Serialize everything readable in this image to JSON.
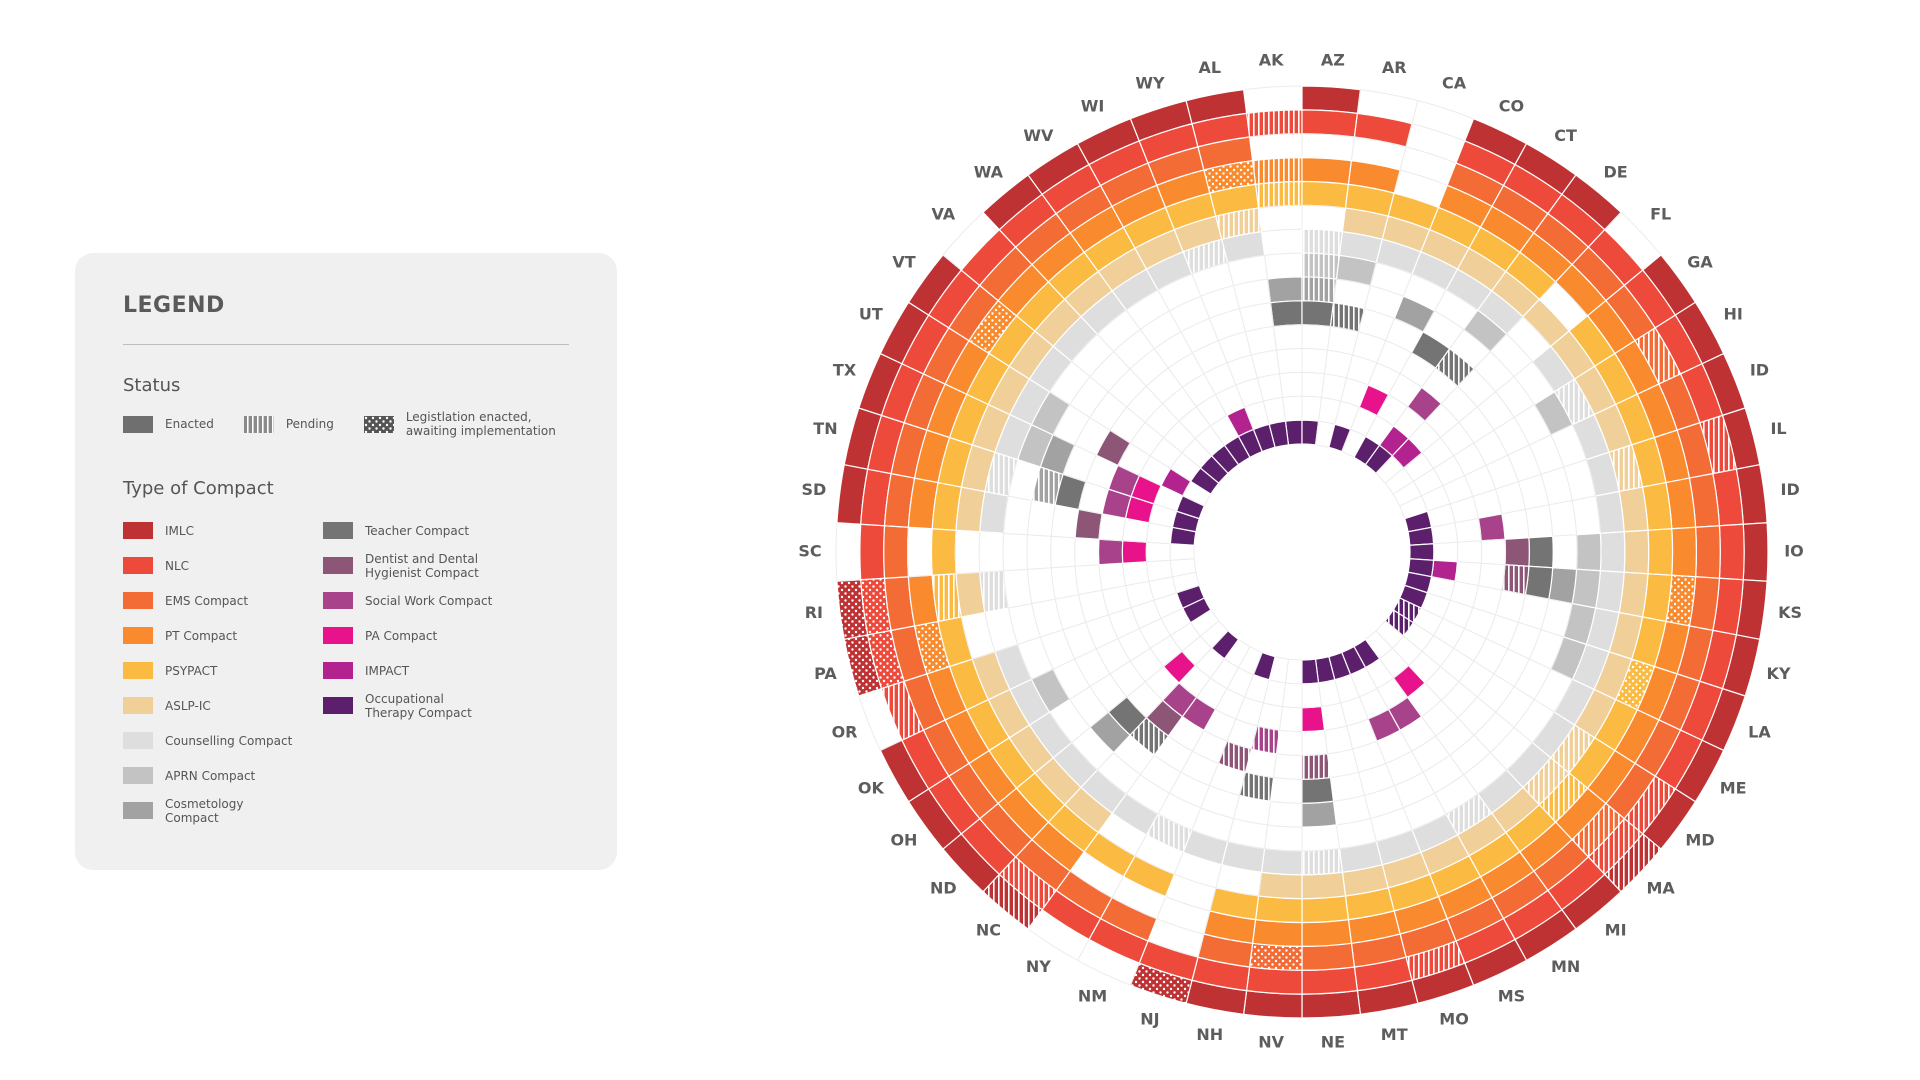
{
  "chart_data": {
    "type": "radial-heatmap",
    "legend_title": "LEGEND",
    "status_title": "Status",
    "statuses": [
      "Enacted",
      "Pending",
      "Legistlation enacted, awaiting implementation"
    ],
    "compact_title": "Type of Compact",
    "categories": [
      "AK",
      "AZ",
      "AR",
      "CA",
      "CO",
      "CT",
      "DE",
      "FL",
      "GA",
      "HI",
      "ID",
      "IL",
      "ID",
      "IO",
      "KS",
      "KY",
      "LA",
      "ME",
      "MD",
      "MA",
      "MI",
      "MN",
      "MS",
      "MO",
      "MT",
      "NE",
      "NV",
      "NH",
      "NJ",
      "NM",
      "NY",
      "NC",
      "ND",
      "OH",
      "OK",
      "OR",
      "PA",
      "RI",
      "SC",
      "SD",
      "TN",
      "TX",
      "UT",
      "VT",
      "VA",
      "WA",
      "WV",
      "WI",
      "WY",
      "AL"
    ],
    "series": [
      {
        "name": "IMLC",
        "color": "#be3234",
        "values": [
          null,
          0,
          null,
          null,
          0,
          0,
          0,
          null,
          0,
          0,
          0,
          0,
          0,
          0,
          0,
          0,
          0,
          0,
          0,
          1,
          0,
          0,
          0,
          0,
          0,
          0,
          0,
          0,
          2,
          null,
          null,
          1,
          0,
          0,
          0,
          null,
          2,
          2,
          null,
          0,
          0,
          0,
          0,
          0,
          null,
          0,
          0,
          0,
          0,
          0
        ]
      },
      {
        "name": "NLC",
        "color": "#ee4a3b",
        "values": [
          1,
          0,
          0,
          null,
          0,
          0,
          0,
          0,
          0,
          0,
          0,
          1,
          0,
          0,
          0,
          0,
          0,
          0,
          1,
          1,
          0,
          0,
          0,
          1,
          0,
          0,
          0,
          0,
          0,
          0,
          0,
          1,
          0,
          0,
          0,
          1,
          2,
          2,
          0,
          0,
          0,
          0,
          0,
          0,
          0,
          0,
          0,
          0,
          0,
          0
        ]
      },
      {
        "name": "EMS Compact",
        "color": "#f36b35",
        "values": [
          null,
          null,
          null,
          null,
          0,
          0,
          0,
          0,
          0,
          1,
          0,
          0,
          0,
          0,
          0,
          0,
          0,
          0,
          0,
          1,
          0,
          0,
          0,
          0,
          0,
          0,
          2,
          0,
          null,
          0,
          0,
          0,
          0,
          0,
          0,
          0,
          0,
          0,
          0,
          0,
          0,
          0,
          0,
          0,
          0,
          0,
          0,
          0,
          0,
          0
        ]
      },
      {
        "name": "PT Compact",
        "color": "#f98b2e",
        "values": [
          1,
          0,
          0,
          null,
          0,
          0,
          0,
          0,
          0,
          0,
          0,
          0,
          0,
          0,
          2,
          0,
          0,
          0,
          0,
          0,
          0,
          0,
          0,
          0,
          0,
          0,
          0,
          0,
          null,
          null,
          null,
          0,
          0,
          0,
          0,
          0,
          2,
          0,
          null,
          0,
          0,
          0,
          0,
          2,
          0,
          0,
          0,
          0,
          0,
          2
        ]
      },
      {
        "name": "PSYPACT",
        "color": "#fbba41",
        "values": [
          1,
          0,
          0,
          0,
          0,
          0,
          0,
          null,
          0,
          0,
          0,
          0,
          0,
          0,
          0,
          0,
          2,
          0,
          0,
          1,
          0,
          0,
          0,
          0,
          0,
          0,
          0,
          0,
          null,
          0,
          0,
          0,
          0,
          0,
          0,
          0,
          0,
          1,
          0,
          0,
          0,
          0,
          0,
          0,
          0,
          0,
          0,
          0,
          0,
          0
        ]
      },
      {
        "name": "ASLP-IC",
        "color": "#f1cf99",
        "values": [
          null,
          null,
          0,
          0,
          0,
          0,
          0,
          0,
          0,
          0,
          0,
          1,
          0,
          0,
          0,
          0,
          0,
          0,
          1,
          1,
          0,
          0,
          0,
          0,
          0,
          0,
          0,
          null,
          null,
          null,
          null,
          0,
          0,
          0,
          0,
          0,
          null,
          0,
          null,
          0,
          0,
          0,
          0,
          0,
          0,
          0,
          0,
          0,
          0,
          1
        ]
      },
      {
        "name": "Counselling Compact",
        "color": "#dedede",
        "values": [
          null,
          1,
          0,
          0,
          0,
          0,
          0,
          null,
          0,
          1,
          0,
          0,
          0,
          0,
          0,
          0,
          0,
          0,
          0,
          0,
          0,
          1,
          0,
          0,
          0,
          1,
          0,
          0,
          0,
          1,
          0,
          0,
          0,
          0,
          0,
          0,
          null,
          1,
          null,
          0,
          1,
          0,
          0,
          0,
          0,
          0,
          0,
          0,
          1,
          0
        ]
      },
      {
        "name": "APRN Compact",
        "color": "#c3c3c3",
        "values": [
          null,
          1,
          0,
          null,
          null,
          null,
          0,
          null,
          null,
          0,
          null,
          null,
          null,
          0,
          0,
          0,
          0,
          null,
          null,
          null,
          null,
          null,
          null,
          null,
          null,
          null,
          null,
          null,
          null,
          null,
          null,
          null,
          null,
          null,
          0,
          null,
          null,
          null,
          null,
          null,
          null,
          0,
          0,
          null,
          null,
          null,
          null,
          null,
          null,
          null
        ]
      },
      {
        "name": "Cosmetology Compact",
        "color": "#a2a2a2",
        "values": [
          0,
          1,
          null,
          null,
          0,
          null,
          null,
          null,
          null,
          null,
          null,
          null,
          null,
          null,
          0,
          null,
          null,
          null,
          null,
          null,
          null,
          null,
          null,
          null,
          null,
          0,
          null,
          null,
          null,
          null,
          null,
          null,
          0,
          null,
          null,
          null,
          null,
          null,
          null,
          null,
          1,
          0,
          null,
          null,
          null,
          null,
          null,
          null,
          null,
          null
        ]
      },
      {
        "name": "Teacher Compact",
        "color": "#747474",
        "values": [
          0,
          0,
          1,
          null,
          null,
          0,
          1,
          null,
          null,
          null,
          null,
          null,
          null,
          0,
          0,
          null,
          null,
          null,
          null,
          null,
          null,
          null,
          null,
          null,
          null,
          0,
          null,
          1,
          null,
          null,
          null,
          1,
          0,
          null,
          null,
          null,
          null,
          null,
          null,
          null,
          0,
          null,
          null,
          null,
          null,
          null,
          null,
          null,
          null,
          null
        ]
      },
      {
        "name": "Dentist and Dental Hygienist Compact",
        "color": "#8d5677",
        "values": [
          null,
          null,
          null,
          null,
          null,
          null,
          null,
          null,
          null,
          null,
          null,
          null,
          null,
          0,
          1,
          null,
          null,
          null,
          null,
          null,
          null,
          null,
          null,
          null,
          null,
          1,
          null,
          null,
          1,
          null,
          null,
          0,
          null,
          null,
          null,
          null,
          null,
          null,
          null,
          0,
          null,
          null,
          0,
          null,
          null,
          null,
          null,
          null,
          null,
          null
        ]
      },
      {
        "name": "Social Work Compact",
        "color": "#a8438b",
        "values": [
          null,
          null,
          null,
          null,
          null,
          null,
          0,
          null,
          null,
          null,
          null,
          null,
          0,
          null,
          null,
          null,
          null,
          null,
          null,
          null,
          null,
          0,
          0,
          null,
          null,
          null,
          null,
          1,
          null,
          null,
          0,
          0,
          null,
          null,
          null,
          null,
          null,
          null,
          0,
          null,
          0,
          0,
          null,
          null,
          null,
          null,
          null,
          null,
          null,
          null
        ]
      },
      {
        "name": "PA Compact",
        "color": "#e8128b",
        "values": [
          null,
          null,
          null,
          null,
          0,
          null,
          null,
          null,
          null,
          null,
          null,
          null,
          null,
          null,
          null,
          null,
          null,
          null,
          null,
          null,
          0,
          null,
          null,
          null,
          null,
          0,
          null,
          null,
          null,
          null,
          null,
          null,
          0,
          null,
          null,
          null,
          null,
          null,
          0,
          null,
          0,
          0,
          null,
          null,
          null,
          null,
          null,
          null,
          null,
          null
        ]
      },
      {
        "name": "IMPACT",
        "color": "#b3238f",
        "values": [
          null,
          null,
          null,
          null,
          null,
          null,
          0,
          0,
          null,
          null,
          null,
          null,
          null,
          null,
          0,
          null,
          null,
          null,
          null,
          null,
          null,
          null,
          null,
          null,
          null,
          null,
          null,
          null,
          null,
          null,
          null,
          null,
          null,
          null,
          null,
          null,
          null,
          null,
          null,
          null,
          null,
          null,
          0,
          null,
          null,
          null,
          null,
          0,
          null,
          null
        ]
      },
      {
        "name": "Occupational Therapy Compact",
        "color": "#5c1f6c",
        "values": [
          0,
          0,
          null,
          0,
          null,
          0,
          0,
          null,
          null,
          null,
          null,
          0,
          0,
          0,
          0,
          0,
          0,
          1,
          1,
          null,
          null,
          0,
          0,
          0,
          0,
          0,
          null,
          null,
          0,
          null,
          null,
          0,
          null,
          null,
          0,
          0,
          null,
          null,
          null,
          0,
          0,
          0,
          null,
          0,
          0,
          0,
          0,
          0,
          0,
          0
        ]
      }
    ]
  }
}
